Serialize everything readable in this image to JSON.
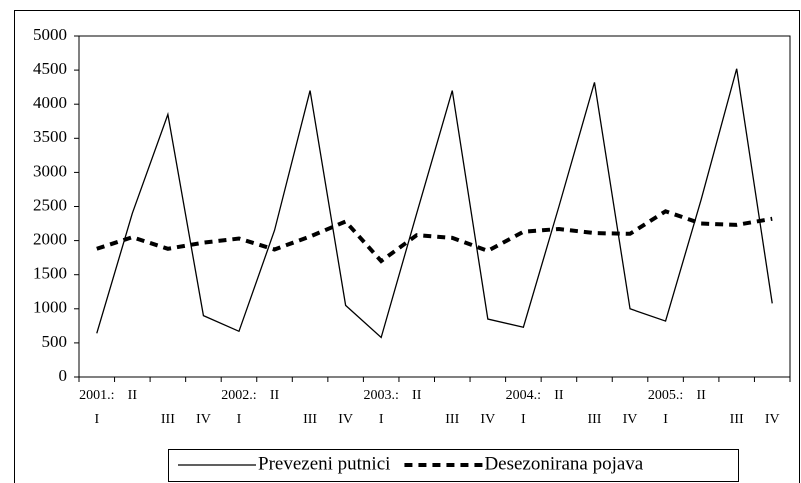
{
  "chart_data": {
    "type": "line",
    "categories": [
      [
        "2001.:",
        "I"
      ],
      [
        "II"
      ],
      [
        "III"
      ],
      [
        "IV"
      ],
      [
        "2002.:",
        "I"
      ],
      [
        "II"
      ],
      [
        "III"
      ],
      [
        "IV"
      ],
      [
        "2003.:",
        "I"
      ],
      [
        "II"
      ],
      [
        "III"
      ],
      [
        "IV"
      ],
      [
        "2004.:",
        "I"
      ],
      [
        "II"
      ],
      [
        "III"
      ],
      [
        "IV"
      ],
      [
        "2005.:",
        "I"
      ],
      [
        "II"
      ],
      [
        "III"
      ],
      [
        "IV"
      ]
    ],
    "series": [
      {
        "name": "Prevezeni putnici",
        "color": "#000000",
        "style": "solid",
        "values": [
          640,
          2400,
          3850,
          900,
          670,
          2150,
          4200,
          1050,
          580,
          2400,
          4200,
          850,
          730,
          2500,
          4320,
          1000,
          820,
          2600,
          4520,
          1080
        ]
      },
      {
        "name": "Desezonirana pojava",
        "color": "#000000",
        "style": "dashed",
        "values": [
          1880,
          2050,
          1880,
          1970,
          2030,
          1870,
          2060,
          2280,
          1700,
          2080,
          2040,
          1850,
          2130,
          2170,
          2110,
          2100,
          2430,
          2250,
          2230,
          2320
        ]
      }
    ],
    "ylim": [
      0,
      5000
    ],
    "yticks": [
      0,
      500,
      1000,
      1500,
      2000,
      2500,
      3000,
      3500,
      4000,
      4500,
      5000
    ],
    "legend": "bottom"
  }
}
